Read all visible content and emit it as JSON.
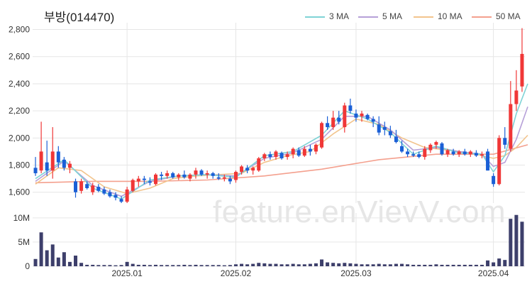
{
  "title": "부방(014470)",
  "watermark": "feature.enVievV.com",
  "colors": {
    "up": "#f03737",
    "down": "#1a5fd6",
    "volume": "#3d3f6b",
    "grid": "#e6e6e6",
    "ma3": "#7fd3d6",
    "ma5": "#b6a0d8",
    "ma10": "#f2c48d",
    "ma50": "#f4a08e"
  },
  "legend": [
    {
      "label": "3 MA",
      "color": "#7fd3d6"
    },
    {
      "label": "5 MA",
      "color": "#b6a0d8"
    },
    {
      "label": "10 MA",
      "color": "#f2c48d"
    },
    {
      "label": "50 MA",
      "color": "#f4a08e"
    }
  ],
  "chart_data": {
    "type": "candlestick",
    "price_axis": {
      "ylim": [
        1520,
        2850
      ],
      "ticks": [
        "1,600",
        "1,800",
        "2,000",
        "2,200",
        "2,400",
        "2,600",
        "2,800"
      ],
      "tick_values": [
        1600,
        1800,
        2000,
        2200,
        2400,
        2600,
        2800
      ]
    },
    "volume_axis": {
      "ylim": [
        0,
        11000000
      ],
      "ticks": [
        "0",
        "5M",
        "10M"
      ],
      "tick_values": [
        0,
        5000000,
        10000000
      ]
    },
    "x_ticks": [
      {
        "label": "2025.01",
        "index": 16
      },
      {
        "label": "2025.02",
        "index": 35
      },
      {
        "label": "2025.03",
        "index": 56
      },
      {
        "label": "2025.04",
        "index": 80
      }
    ],
    "grid": true,
    "legend_position": "top-right",
    "ohlc": [
      [
        1780,
        1860,
        1720,
        1740
      ],
      [
        1760,
        2120,
        1740,
        1900
      ],
      [
        1820,
        1980,
        1720,
        1760
      ],
      [
        1760,
        2080,
        1700,
        1900
      ],
      [
        1900,
        1940,
        1780,
        1820
      ],
      [
        1840,
        1860,
        1760,
        1780
      ],
      [
        1780,
        1830,
        1740,
        1810
      ],
      [
        1680,
        1700,
        1560,
        1600
      ],
      [
        1610,
        1700,
        1590,
        1680
      ],
      [
        1660,
        1680,
        1620,
        1630
      ],
      [
        1600,
        1670,
        1580,
        1650
      ],
      [
        1640,
        1660,
        1600,
        1610
      ],
      [
        1620,
        1640,
        1580,
        1590
      ],
      [
        1600,
        1620,
        1560,
        1570
      ],
      [
        1580,
        1600,
        1540,
        1560
      ],
      [
        1550,
        1570,
        1520,
        1530
      ],
      [
        1530,
        1640,
        1520,
        1620
      ],
      [
        1610,
        1700,
        1600,
        1690
      ],
      [
        1680,
        1720,
        1640,
        1700
      ],
      [
        1700,
        1720,
        1660,
        1690
      ],
      [
        1680,
        1710,
        1650,
        1670
      ],
      [
        1660,
        1740,
        1650,
        1730
      ],
      [
        1730,
        1750,
        1690,
        1720
      ],
      [
        1720,
        1760,
        1700,
        1740
      ],
      [
        1740,
        1750,
        1700,
        1710
      ],
      [
        1710,
        1740,
        1690,
        1730
      ],
      [
        1730,
        1760,
        1700,
        1710
      ],
      [
        1700,
        1740,
        1680,
        1730
      ],
      [
        1730,
        1780,
        1700,
        1760
      ],
      [
        1760,
        1770,
        1720,
        1730
      ],
      [
        1730,
        1760,
        1700,
        1740
      ],
      [
        1740,
        1750,
        1700,
        1720
      ],
      [
        1710,
        1740,
        1690,
        1700
      ],
      [
        1700,
        1730,
        1680,
        1710
      ],
      [
        1700,
        1720,
        1660,
        1680
      ],
      [
        1690,
        1760,
        1670,
        1750
      ],
      [
        1750,
        1800,
        1730,
        1790
      ],
      [
        1780,
        1800,
        1740,
        1760
      ],
      [
        1760,
        1790,
        1730,
        1780
      ],
      [
        1760,
        1860,
        1750,
        1850
      ],
      [
        1850,
        1890,
        1830,
        1880
      ],
      [
        1880,
        1900,
        1840,
        1860
      ],
      [
        1860,
        1910,
        1840,
        1900
      ],
      [
        1890,
        1900,
        1840,
        1850
      ],
      [
        1860,
        1900,
        1840,
        1880
      ],
      [
        1880,
        1930,
        1850,
        1920
      ],
      [
        1910,
        1930,
        1860,
        1870
      ],
      [
        1870,
        1940,
        1860,
        1920
      ],
      [
        1920,
        1950,
        1870,
        1900
      ],
      [
        1900,
        1960,
        1880,
        1950
      ],
      [
        1930,
        2120,
        1920,
        2110
      ],
      [
        2110,
        2160,
        2060,
        2080
      ],
      [
        2080,
        2200,
        2060,
        2150
      ],
      [
        2150,
        2200,
        2100,
        2120
      ],
      [
        2080,
        2260,
        2040,
        2240
      ],
      [
        2240,
        2290,
        2180,
        2200
      ],
      [
        2180,
        2210,
        2120,
        2150
      ],
      [
        2160,
        2200,
        2120,
        2180
      ],
      [
        2170,
        2180,
        2130,
        2140
      ],
      [
        2140,
        2160,
        2080,
        2120
      ],
      [
        2100,
        2160,
        2020,
        2040
      ],
      [
        2080,
        2120,
        2020,
        2060
      ],
      [
        2050,
        2090,
        2000,
        2020
      ],
      [
        2010,
        2060,
        1960,
        1970
      ],
      [
        1940,
        1980,
        1890,
        1900
      ],
      [
        1900,
        1920,
        1860,
        1880
      ],
      [
        1880,
        1900,
        1860,
        1870
      ],
      [
        1880,
        1900,
        1850,
        1860
      ],
      [
        1860,
        1940,
        1840,
        1920
      ],
      [
        1910,
        1960,
        1890,
        1950
      ],
      [
        1950,
        1980,
        1920,
        1970
      ],
      [
        1960,
        1970,
        1870,
        1880
      ],
      [
        1880,
        1920,
        1860,
        1910
      ],
      [
        1900,
        1920,
        1870,
        1880
      ],
      [
        1880,
        1910,
        1860,
        1900
      ],
      [
        1900,
        1920,
        1870,
        1880
      ],
      [
        1880,
        1910,
        1860,
        1900
      ],
      [
        1890,
        1910,
        1860,
        1870
      ],
      [
        1870,
        1900,
        1850,
        1880
      ],
      [
        1900,
        1920,
        1760,
        1760
      ],
      [
        1720,
        1740,
        1640,
        1660
      ],
      [
        1660,
        2020,
        1650,
        2000
      ],
      [
        2000,
        2080,
        1920,
        1950
      ],
      [
        1920,
        2420,
        1900,
        2250
      ],
      [
        2250,
        2500,
        2200,
        2350
      ],
      [
        2380,
        2810,
        2340,
        2620
      ]
    ],
    "volume": [
      1500000,
      7000000,
      3300000,
      4500000,
      1800000,
      2900000,
      900000,
      2200000,
      700000,
      300000,
      300000,
      250000,
      250000,
      250000,
      200000,
      250000,
      900000,
      500000,
      300000,
      300000,
      250000,
      300000,
      250000,
      250000,
      250000,
      250000,
      300000,
      250000,
      300000,
      250000,
      250000,
      250000,
      250000,
      200000,
      250000,
      400000,
      500000,
      400000,
      500000,
      700000,
      600000,
      500000,
      500000,
      400000,
      400000,
      500000,
      400000,
      400000,
      500000,
      600000,
      1400000,
      800000,
      700000,
      600000,
      700000,
      600000,
      500000,
      400000,
      400000,
      400000,
      500000,
      400000,
      400000,
      500000,
      500000,
      400000,
      300000,
      300000,
      300000,
      300000,
      400000,
      300000,
      300000,
      300000,
      300000,
      300000,
      300000,
      300000,
      300000,
      1200000,
      800000,
      1600000,
      1300000,
      9800000,
      10600000,
      9200000
    ],
    "ma": {
      "ma3": [
        [
          0,
          1700
        ],
        [
          5,
          1840
        ],
        [
          10,
          1630
        ],
        [
          15,
          1550
        ],
        [
          20,
          1690
        ],
        [
          25,
          1720
        ],
        [
          30,
          1730
        ],
        [
          35,
          1710
        ],
        [
          40,
          1870
        ],
        [
          45,
          1900
        ],
        [
          50,
          2020
        ],
        [
          54,
          2200
        ],
        [
          58,
          2140
        ],
        [
          62,
          2040
        ],
        [
          66,
          1880
        ],
        [
          70,
          1940
        ],
        [
          74,
          1890
        ],
        [
          78,
          1880
        ],
        [
          80,
          1750
        ],
        [
          82,
          1870
        ],
        [
          84,
          2180
        ],
        [
          86,
          2400
        ]
      ],
      "ma5": [
        [
          0,
          1680
        ],
        [
          5,
          1830
        ],
        [
          10,
          1650
        ],
        [
          15,
          1570
        ],
        [
          20,
          1680
        ],
        [
          25,
          1720
        ],
        [
          30,
          1730
        ],
        [
          35,
          1720
        ],
        [
          40,
          1850
        ],
        [
          45,
          1890
        ],
        [
          50,
          1990
        ],
        [
          54,
          2160
        ],
        [
          58,
          2160
        ],
        [
          62,
          2060
        ],
        [
          66,
          1910
        ],
        [
          70,
          1930
        ],
        [
          74,
          1900
        ],
        [
          78,
          1880
        ],
        [
          80,
          1790
        ],
        [
          82,
          1820
        ],
        [
          84,
          1990
        ],
        [
          86,
          2230
        ]
      ],
      "ma10": [
        [
          0,
          1660
        ],
        [
          4,
          1780
        ],
        [
          8,
          1760
        ],
        [
          12,
          1640
        ],
        [
          16,
          1590
        ],
        [
          20,
          1630
        ],
        [
          24,
          1700
        ],
        [
          28,
          1720
        ],
        [
          32,
          1730
        ],
        [
          36,
          1740
        ],
        [
          40,
          1820
        ],
        [
          44,
          1870
        ],
        [
          48,
          1900
        ],
        [
          52,
          2030
        ],
        [
          56,
          2140
        ],
        [
          60,
          2100
        ],
        [
          64,
          2000
        ],
        [
          68,
          1930
        ],
        [
          72,
          1910
        ],
        [
          76,
          1890
        ],
        [
          80,
          1850
        ],
        [
          82,
          1870
        ],
        [
          84,
          1930
        ],
        [
          86,
          2020
        ]
      ],
      "ma50": [
        [
          0,
          1670
        ],
        [
          10,
          1680
        ],
        [
          20,
          1680
        ],
        [
          30,
          1690
        ],
        [
          40,
          1720
        ],
        [
          50,
          1770
        ],
        [
          60,
          1840
        ],
        [
          70,
          1880
        ],
        [
          80,
          1880
        ],
        [
          86,
          1950
        ]
      ]
    }
  }
}
